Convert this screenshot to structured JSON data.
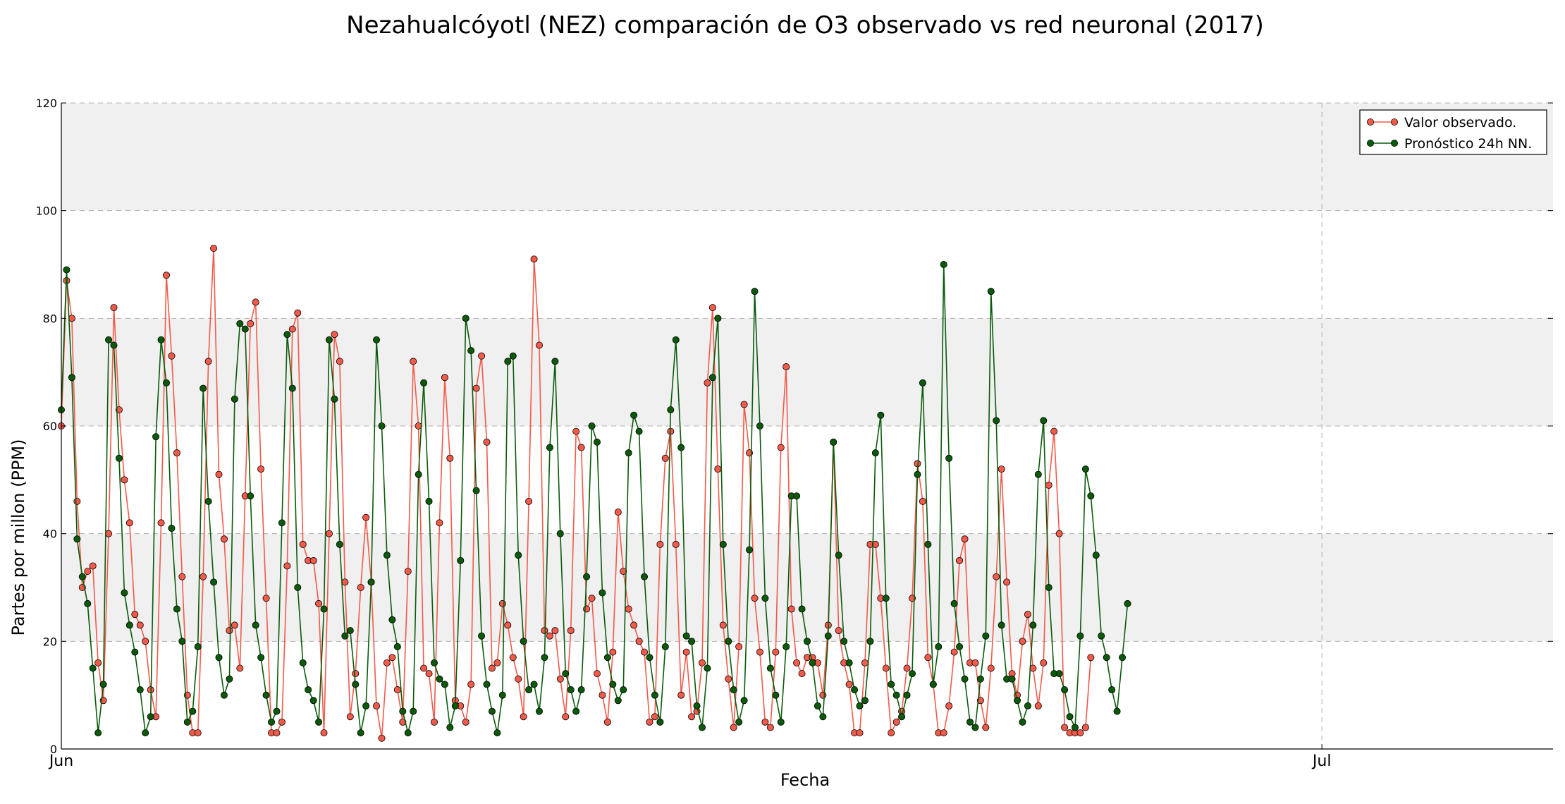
{
  "chart_data": {
    "type": "line",
    "title": "Nezahualcóyotl (NEZ) comparación de O3 observado vs red neuronal (2017)",
    "xlabel": "Fecha",
    "ylabel": "Partes por millon (PPM)",
    "ylim": [
      0,
      120
    ],
    "yticks": [
      "0",
      "20",
      "40",
      "60",
      "80",
      "100",
      "120"
    ],
    "xlim": [
      "2017-06-01 00:00",
      "2017-07-06 12:00"
    ],
    "xticks": [
      {
        "label": "Jun",
        "date": "2017-06-01 00:00"
      },
      {
        "label": "Jul",
        "date": "2017-07-01 00:00"
      }
    ],
    "sampling": "hourly, readings every 3 hours shown",
    "grid": true,
    "band_shading": "alternating grey bands 20-40, 60-80, 100-120",
    "legend_position": "top-right",
    "series": [
      {
        "name": "Valor observado.",
        "color": "#f25a4a",
        "start": "2017-06-01 00:00",
        "step_hours": 3,
        "values": [
          60,
          87,
          80,
          46,
          30,
          33,
          34,
          16,
          9,
          40,
          82,
          63,
          50,
          42,
          25,
          23,
          20,
          11,
          6,
          42,
          88,
          73,
          55,
          32,
          10,
          3,
          3,
          32,
          72,
          93,
          51,
          39,
          22,
          23,
          15,
          47,
          79,
          83,
          52,
          28,
          3,
          3,
          5,
          34,
          78,
          81,
          38,
          35,
          35,
          27,
          3,
          40,
          77,
          72,
          31,
          6,
          14,
          30,
          43,
          31,
          8,
          2,
          16,
          17,
          11,
          5,
          33,
          72,
          60,
          15,
          14,
          5,
          42,
          69,
          54,
          9,
          8,
          5,
          12,
          67,
          73,
          57,
          15,
          16,
          27,
          23,
          17,
          13,
          6,
          46,
          91,
          75,
          22,
          21,
          22,
          13,
          6,
          22,
          59,
          56,
          26,
          28,
          14,
          10,
          5,
          18,
          44,
          33,
          26,
          23,
          20,
          18,
          5,
          6,
          38,
          54,
          59,
          38,
          10,
          18,
          6,
          7,
          16,
          68,
          82,
          52,
          23,
          13,
          4,
          19,
          64,
          55,
          28,
          18,
          5,
          4,
          18,
          56,
          71,
          26,
          16,
          14,
          17,
          17,
          16,
          10,
          23,
          57,
          22,
          16,
          12,
          3,
          3,
          16,
          38,
          38,
          28,
          15,
          3,
          5,
          7,
          15,
          28,
          53,
          46,
          17,
          12,
          3,
          3,
          8,
          18,
          35,
          39,
          16,
          16,
          9,
          4,
          15,
          32,
          52,
          31,
          14,
          10,
          20,
          25,
          15,
          8,
          16,
          49,
          59,
          40,
          4,
          3,
          3,
          3,
          4,
          17
        ]
      },
      {
        "name": "Pronóstico 24h NN.",
        "color": "#0a5a0a",
        "start": "2017-06-01 00:00",
        "step_hours": 3,
        "values": [
          63,
          89,
          69,
          39,
          32,
          27,
          15,
          3,
          12,
          76,
          75,
          54,
          29,
          23,
          18,
          11,
          3,
          6,
          58,
          76,
          68,
          41,
          26,
          20,
          5,
          7,
          19,
          67,
          46,
          31,
          17,
          10,
          13,
          65,
          79,
          78,
          47,
          23,
          17,
          10,
          5,
          7,
          42,
          77,
          67,
          30,
          16,
          11,
          9,
          5,
          26,
          76,
          65,
          38,
          21,
          22,
          12,
          3,
          8,
          31,
          76,
          60,
          36,
          24,
          19,
          7,
          3,
          7,
          51,
          68,
          46,
          16,
          13,
          12,
          4,
          8,
          35,
          80,
          74,
          48,
          21,
          12,
          7,
          3,
          10,
          72,
          73,
          36,
          20,
          11,
          12,
          7,
          17,
          56,
          72,
          40,
          14,
          11,
          7,
          11,
          32,
          60,
          57,
          29,
          17,
          12,
          9,
          11,
          55,
          62,
          59,
          32,
          17,
          10,
          5,
          19,
          63,
          76,
          56,
          21,
          20,
          8,
          4,
          15,
          69,
          80,
          38,
          20,
          11,
          5,
          9,
          37,
          85,
          60,
          28,
          15,
          10,
          5,
          19,
          47,
          47,
          26,
          20,
          16,
          8,
          6,
          21,
          57,
          36,
          20,
          16,
          11,
          8,
          9,
          20,
          55,
          62,
          28,
          12,
          10,
          6,
          10,
          14,
          51,
          68,
          38,
          12,
          19,
          90,
          54,
          27,
          19,
          13,
          5,
          4,
          13,
          21,
          85,
          61,
          23,
          13,
          13,
          9,
          5,
          8,
          23,
          51,
          61,
          30,
          14,
          14,
          11,
          6,
          4,
          21,
          52,
          47,
          36,
          21,
          17,
          11,
          7,
          17,
          27
        ]
      }
    ]
  }
}
